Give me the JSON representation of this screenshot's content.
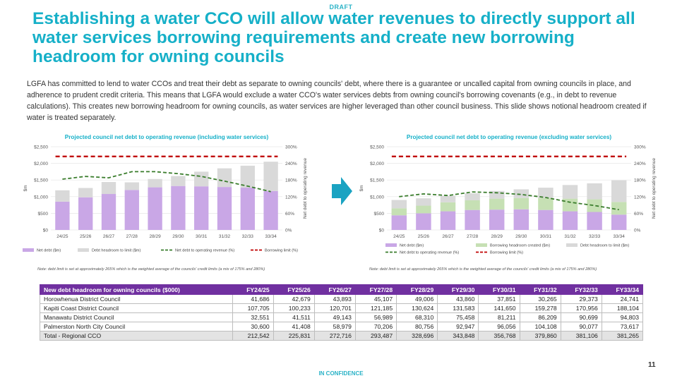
{
  "header": {
    "draft_label": "DRAFT",
    "title": "Establishing a water CCO will allow water revenues to directly support all water services borrowing requirements and create new borrowing headroom for owning councils"
  },
  "intro": "LGFA has committed to lend to water CCOs and treat their debt as separate to owning councils' debt, where there is a guarantee or uncalled capital from owning councils in place, and adherence to prudent credit criteria. This means that LGFA would exclude a water CCO's water services debts from owning council's borrowing covenants (e.g., in debt to revenue calculations). This creates new borrowing headroom for owning councils, as water services are higher leveraged than other council business. This slide shows notional headroom created if water is treated separately.",
  "colors": {
    "title": "#16b0c8",
    "net_debt": "#c9a7e6",
    "headroom_limit": "#d9d9d9",
    "headroom_created": "#c6e0b4",
    "ratio_line": "#3a7d2c",
    "limit_line": "#c00000",
    "table_header": "#7030a0",
    "arrow": "#1aa3c2"
  },
  "chart_data": [
    {
      "type": "bar",
      "title": "Projected council net debt to operating revenue (including water services)",
      "categories": [
        "24/25",
        "25/26",
        "26/27",
        "27/28",
        "28/29",
        "29/30",
        "30/31",
        "31/32",
        "32/33",
        "33/34"
      ],
      "ylabel": "$m",
      "y2label": "Net debt to operating revenue",
      "yticks": [
        "$0",
        "$500",
        "$1,000",
        "$1,500",
        "$2,000",
        "$2,500"
      ],
      "y2ticks": [
        "0%",
        "60%",
        "120%",
        "180%",
        "240%",
        "300%"
      ],
      "ylim": [
        0,
        2500
      ],
      "y2lim": [
        0,
        300
      ],
      "stacked": true,
      "series": [
        {
          "name": "Net debt ($m)",
          "kind": "bar",
          "values": [
            850,
            980,
            1080,
            1200,
            1280,
            1320,
            1310,
            1290,
            1270,
            1170
          ]
        },
        {
          "name": "Debt headroom to limit ($m)",
          "kind": "bar",
          "values": [
            340,
            280,
            360,
            230,
            250,
            300,
            440,
            560,
            660,
            880
          ]
        },
        {
          "name": "Net debt to operating revenue (%)",
          "kind": "line",
          "style": "dashed",
          "axis": "right",
          "values": [
            183,
            193,
            188,
            210,
            210,
            203,
            193,
            176,
            158,
            138
          ]
        },
        {
          "name": "Borrowing limit (%)",
          "kind": "line",
          "style": "dashed",
          "axis": "right",
          "values": [
            265,
            265,
            265,
            265,
            265,
            265,
            265,
            265,
            265,
            265
          ]
        }
      ],
      "legend_position": "bottom"
    },
    {
      "type": "bar",
      "title": "Projected council net debt to operating revenue (excluding water services)",
      "categories": [
        "24/25",
        "25/26",
        "26/27",
        "27/28",
        "28/29",
        "29/30",
        "30/31",
        "31/32",
        "32/33",
        "33/34"
      ],
      "ylabel": "$m",
      "y2label": "Net debt to operating revenue",
      "yticks": [
        "$0",
        "$500",
        "$1,000",
        "$1,500",
        "$2,000",
        "$2,500"
      ],
      "y2ticks": [
        "0%",
        "60%",
        "120%",
        "180%",
        "240%",
        "300%"
      ],
      "ylim": [
        0,
        2500
      ],
      "y2lim": [
        0,
        300
      ],
      "stacked": true,
      "series": [
        {
          "name": "Net debt ($m)",
          "kind": "bar",
          "values": [
            440,
            500,
            560,
            600,
            610,
            620,
            600,
            560,
            540,
            460
          ]
        },
        {
          "name": "Borrowing headroom created ($m)",
          "kind": "bar",
          "values": [
            210,
            230,
            270,
            290,
            330,
            340,
            360,
            380,
            380,
            380
          ]
        },
        {
          "name": "Debt headroom to limit ($m)",
          "kind": "bar",
          "values": [
            250,
            220,
            200,
            210,
            230,
            260,
            310,
            410,
            480,
            650
          ]
        },
        {
          "name": "Net debt to operating revenue (%)",
          "kind": "line",
          "style": "dashed",
          "axis": "right",
          "values": [
            120,
            130,
            124,
            137,
            134,
            128,
            117,
            100,
            88,
            73
          ]
        },
        {
          "name": "Borrowing limit (%)",
          "kind": "line",
          "style": "dashed",
          "axis": "right",
          "values": [
            265,
            265,
            265,
            265,
            265,
            265,
            265,
            265,
            265,
            265
          ]
        }
      ],
      "legend_position": "bottom"
    }
  ],
  "notes": {
    "left": "Note: debt limit is set at approximately 265% which is the weighted average of the councils' credit limits (a mix of 175% and 280%)",
    "right": "Note: debt limit is set at approximately 265% which is the weighted average of the councils' credit limits (a mix of 175% and 280%)"
  },
  "table": {
    "headers": [
      "New debt headroom for owning councils ($000)",
      "FY24/25",
      "FY25/26",
      "FY26/27",
      "FY27/28",
      "FY28/29",
      "FY29/30",
      "FY30/31",
      "FY31/32",
      "FY32/33",
      "FY33/34"
    ],
    "rows": [
      [
        "Horowhenua District Council",
        "41,686",
        "42,679",
        "43,893",
        "45,107",
        "49,006",
        "43,860",
        "37,851",
        "30,265",
        "29,373",
        "24,741"
      ],
      [
        "Kapiti Coast District Council",
        "107,705",
        "100,233",
        "120,701",
        "121,185",
        "130,624",
        "131,583",
        "141,650",
        "159,278",
        "170,956",
        "188,104"
      ],
      [
        "Manawatu District Council",
        "32,551",
        "41,511",
        "49,143",
        "56,989",
        "68,310",
        "75,458",
        "81,211",
        "86,209",
        "90,699",
        "94,803"
      ],
      [
        "Palmerston North City Council",
        "30,600",
        "41,408",
        "58,979",
        "70,206",
        "80,756",
        "92,947",
        "96,056",
        "104,108",
        "90,077",
        "73,617"
      ]
    ],
    "total": [
      "Total - Regional CCO",
      "212,542",
      "225,831",
      "272,716",
      "293,487",
      "328,696",
      "343,848",
      "356,768",
      "379,860",
      "381,106",
      "381,265"
    ]
  },
  "footer": {
    "page_number": "11",
    "confidence": "IN CONFIDENCE"
  }
}
